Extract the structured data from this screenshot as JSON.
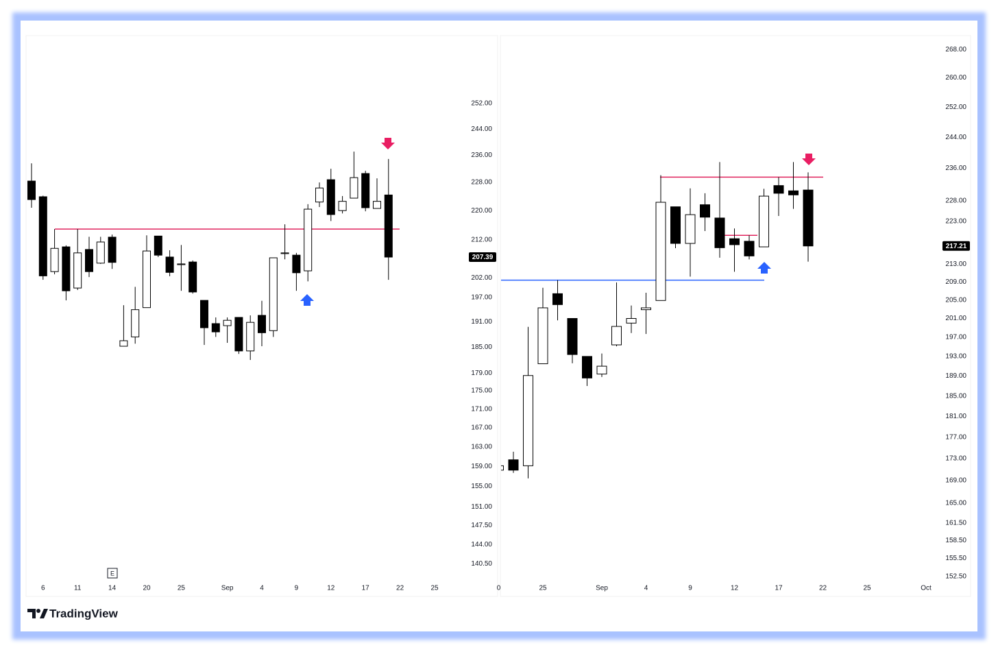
{
  "chart_data": [
    {
      "type": "candlestick",
      "log_scale": true,
      "up_color": "#ffffff",
      "down_color": "#000000",
      "wick_color": "#000000",
      "event_label": "E",
      "categories": [
        null,
        "6",
        null,
        null,
        "11",
        null,
        null,
        "14",
        null,
        null,
        "20",
        null,
        null,
        "25",
        null,
        null,
        null,
        "Sep",
        null,
        null,
        "4",
        null,
        null,
        "9",
        null,
        null,
        "12",
        null,
        null,
        "17",
        null,
        null,
        "22",
        null,
        null,
        "25"
      ],
      "open": [
        228.4,
        223.9,
        203.6,
        210.1,
        199.4,
        209.4,
        205.8,
        212.7,
        185.2,
        187.4,
        194.5,
        213.0,
        207.4,
        205.4,
        206.1,
        196.3,
        190.6,
        190.1,
        192.1,
        184.1,
        192.6,
        188.9,
        208.3,
        207.9,
        203.8,
        222.4,
        228.8,
        220.0,
        223.5,
        230.6,
        220.6,
        224.4,
        null,
        null,
        null,
        null
      ],
      "high": [
        233.6,
        224.2,
        214.9,
        210.5,
        214.9,
        212.8,
        212.8,
        213.4,
        195.1,
        199.7,
        213.2,
        213.0,
        209.2,
        210.6,
        206.5,
        196.3,
        192.1,
        192.1,
        192.1,
        192.6,
        196.2,
        207.2,
        216.2,
        208.5,
        221.8,
        228.0,
        232.0,
        224.1,
        237.1,
        231.4,
        229.2,
        234.9,
        null,
        null,
        null,
        null
      ],
      "low": [
        220.8,
        201.5,
        202.9,
        196.3,
        198.9,
        202.2,
        205.6,
        204.3,
        185.2,
        185.8,
        194.5,
        207.4,
        202.4,
        198.7,
        198.0,
        185.5,
        187.4,
        186.0,
        183.4,
        182.0,
        185.2,
        187.4,
        206.8,
        198.7,
        201.1,
        221.0,
        217.1,
        219.2,
        223.5,
        219.8,
        220.6,
        201.5,
        null,
        null,
        null,
        null
      ],
      "close": [
        223.1,
        202.5,
        209.7,
        198.7,
        208.5,
        203.6,
        211.4,
        206.0,
        186.5,
        194.0,
        209.0,
        207.9,
        203.4,
        205.6,
        198.4,
        189.6,
        188.6,
        191.4,
        184.1,
        190.9,
        188.4,
        207.2,
        208.5,
        203.3,
        220.4,
        226.4,
        218.9,
        222.6,
        229.4,
        220.8,
        222.6,
        207.39,
        null,
        null,
        null,
        null
      ],
      "ylim": [
        134.8,
        274.7
      ],
      "yticks": [
        {
          "value": 252,
          "label": "252.00"
        },
        {
          "value": 244,
          "label": "244.00"
        },
        {
          "value": 236,
          "label": "236.00"
        },
        {
          "value": 228,
          "label": "228.00"
        },
        {
          "value": 220,
          "label": "220.00"
        },
        {
          "value": 212,
          "label": "212.00"
        },
        {
          "value": 202,
          "label": "202.00"
        },
        {
          "value": 197,
          "label": "197.00"
        },
        {
          "value": 191,
          "label": "191.00"
        },
        {
          "value": 185,
          "label": "185.00"
        },
        {
          "value": 179,
          "label": "179.00"
        },
        {
          "value": 175,
          "label": "175.00"
        },
        {
          "value": 171,
          "label": "171.00"
        },
        {
          "value": 167,
          "label": "167.00"
        },
        {
          "value": 163,
          "label": "163.00"
        },
        {
          "value": 159,
          "label": "159.00"
        },
        {
          "value": 155,
          "label": "155.00"
        },
        {
          "value": 151,
          "label": "151.00"
        },
        {
          "value": 147.5,
          "label": "147.50"
        },
        {
          "value": 144,
          "label": "144.00"
        },
        {
          "value": 140.5,
          "label": "140.50"
        }
      ],
      "last_price": 207.39,
      "lines": [
        {
          "value": 214.9,
          "color": "#e0245e"
        }
      ]
    },
    {
      "type": "candlestick",
      "log_scale": true,
      "up_color": "#ffffff",
      "down_color": "#000000",
      "wick_color": "#000000",
      "categories": [
        "0",
        null,
        null,
        "25",
        null,
        null,
        null,
        "Sep",
        null,
        null,
        "4",
        null,
        null,
        "9",
        null,
        null,
        "12",
        null,
        null,
        "17",
        null,
        null,
        "22",
        null,
        null,
        "25",
        null,
        null,
        null,
        "Oct"
      ],
      "open": [
        170.9,
        172.8,
        171.7,
        191.5,
        206.4,
        201.0,
        193.0,
        189.4,
        195.4,
        200.0,
        202.9,
        204.9,
        226.5,
        217.8,
        227.0,
        223.8,
        218.9,
        218.3,
        217.0,
        231.7,
        230.4,
        230.6,
        null,
        null,
        null,
        null,
        null,
        null,
        null,
        null
      ],
      "high": [
        172.0,
        174.3,
        199.2,
        207.7,
        209.4,
        201.0,
        193.0,
        193.6,
        208.9,
        203.8,
        206.6,
        234.3,
        226.5,
        231.0,
        229.8,
        237.6,
        221.3,
        219.7,
        230.9,
        233.8,
        237.6,
        235.0,
        null,
        null,
        null,
        null,
        null,
        null,
        null,
        null
      ],
      "low": [
        170.5,
        170.4,
        169.4,
        191.5,
        200.6,
        191.6,
        187.0,
        188.8,
        195.1,
        197.9,
        197.7,
        204.9,
        216.7,
        210.2,
        220.7,
        214.5,
        211.3,
        214.1,
        217.0,
        224.3,
        226.0,
        213.6,
        null,
        null,
        null,
        null,
        null,
        null,
        null,
        null
      ],
      "close": [
        171.7,
        170.9,
        189.1,
        203.3,
        204.0,
        193.4,
        188.6,
        191.0,
        199.3,
        201.0,
        203.3,
        227.6,
        217.8,
        224.6,
        224.0,
        216.8,
        217.5,
        214.9,
        229.1,
        229.8,
        229.4,
        217.21,
        null,
        null,
        null,
        null,
        null,
        null,
        null,
        null
      ],
      "ylim": [
        149.3,
        272.0
      ],
      "yticks": [
        {
          "value": 268,
          "label": "268.00"
        },
        {
          "value": 260,
          "label": "260.00"
        },
        {
          "value": 252,
          "label": "252.00"
        },
        {
          "value": 244,
          "label": "244.00"
        },
        {
          "value": 236,
          "label": "236.00"
        },
        {
          "value": 228,
          "label": "228.00"
        },
        {
          "value": 223,
          "label": "223.00"
        },
        {
          "value": 213,
          "label": "213.00"
        },
        {
          "value": 209,
          "label": "209.00"
        },
        {
          "value": 205,
          "label": "205.00"
        },
        {
          "value": 201,
          "label": "201.00"
        },
        {
          "value": 197,
          "label": "197.00"
        },
        {
          "value": 193,
          "label": "193.00"
        },
        {
          "value": 189,
          "label": "189.00"
        },
        {
          "value": 185,
          "label": "185.00"
        },
        {
          "value": 181,
          "label": "181.00"
        },
        {
          "value": 177,
          "label": "177.00"
        },
        {
          "value": 173,
          "label": "173.00"
        },
        {
          "value": 169,
          "label": "169.00"
        },
        {
          "value": 165,
          "label": "165.00"
        },
        {
          "value": 161.5,
          "label": "161.50"
        },
        {
          "value": 158.5,
          "label": "158.50"
        },
        {
          "value": 155.5,
          "label": "155.50"
        },
        {
          "value": 152.5,
          "label": "152.50"
        }
      ],
      "last_price": 217.21,
      "lines": [
        {
          "value": 233.8,
          "color": "#e0245e"
        },
        {
          "value": 219.7,
          "color": "#e0245e"
        },
        {
          "value": 209.4,
          "color": "#2962ff"
        }
      ]
    }
  ],
  "watermark": "TradingView"
}
